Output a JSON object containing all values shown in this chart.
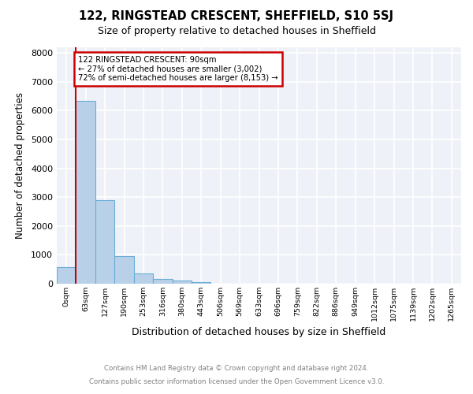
{
  "title": "122, RINGSTEAD CRESCENT, SHEFFIELD, S10 5SJ",
  "subtitle": "Size of property relative to detached houses in Sheffield",
  "xlabel": "Distribution of detached houses by size in Sheffield",
  "ylabel": "Number of detached properties",
  "categories": [
    "0sqm",
    "63sqm",
    "127sqm",
    "190sqm",
    "253sqm",
    "316sqm",
    "380sqm",
    "443sqm",
    "506sqm",
    "569sqm",
    "633sqm",
    "696sqm",
    "759sqm",
    "822sqm",
    "886sqm",
    "949sqm",
    "1012sqm",
    "1075sqm",
    "1139sqm",
    "1202sqm",
    "1265sqm"
  ],
  "values": [
    570,
    6350,
    2900,
    960,
    360,
    155,
    105,
    60,
    0,
    0,
    0,
    0,
    0,
    0,
    0,
    0,
    0,
    0,
    0,
    0,
    0
  ],
  "bar_color": "#b8d0e8",
  "bar_edge_color": "#6aaed6",
  "annotation_title": "122 RINGSTEAD CRESCENT: 90sqm",
  "annotation_line1": "← 27% of detached houses are smaller (3,002)",
  "annotation_line2": "72% of semi-detached houses are larger (8,153) →",
  "vline_color": "#cc0000",
  "annotation_box_color": "#cc0000",
  "ylim": [
    0,
    8200
  ],
  "yticks": [
    0,
    1000,
    2000,
    3000,
    4000,
    5000,
    6000,
    7000,
    8000
  ],
  "footer_line1": "Contains HM Land Registry data © Crown copyright and database right 2024.",
  "footer_line2": "Contains public sector information licensed under the Open Government Licence v3.0.",
  "background_color": "#eef2f8",
  "grid_color": "#ffffff",
  "fig_bg_color": "#ffffff"
}
